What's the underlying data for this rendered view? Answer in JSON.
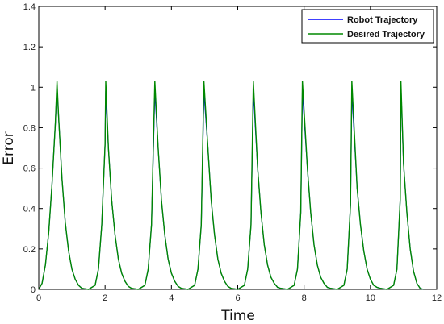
{
  "chart_data": {
    "type": "line",
    "title": "",
    "xlabel": "Time",
    "ylabel": "Error",
    "xlim": [
      0,
      12
    ],
    "ylim": [
      0,
      1.4
    ],
    "xticks": [
      0,
      2,
      4,
      6,
      8,
      10,
      12
    ],
    "xtick_labels": [
      "0",
      "2",
      "4",
      "6",
      "8",
      "10",
      "12"
    ],
    "yticks": [
      0,
      0.2,
      0.4,
      0.6,
      0.8,
      1.0,
      1.2,
      1.4
    ],
    "ytick_labels": [
      "0",
      "0.2",
      "0.4",
      "0.6",
      "0.8",
      "1",
      "1.2",
      "1.4"
    ],
    "grid": false,
    "legend_position": "top-right",
    "peak_times": [
      0.55,
      2.02,
      3.5,
      4.98,
      6.47,
      7.95,
      9.44,
      10.92
    ],
    "peak_value": 1.03,
    "x_end": 11.6,
    "series": [
      {
        "name": "Robot Trajectory",
        "color": "#0000ff",
        "x": [
          0,
          0.1,
          0.2,
          0.3,
          0.4,
          0.5,
          0.55,
          0.6,
          0.7,
          0.8,
          0.9,
          1.0,
          1.1,
          1.2,
          1.3,
          1.5,
          1.7,
          1.8,
          1.9,
          2.0,
          2.02,
          2.1,
          2.2,
          2.3,
          2.4,
          2.5,
          2.6,
          2.7,
          2.8,
          3.0,
          3.2,
          3.3,
          3.4,
          3.5,
          3.6,
          3.7,
          3.8,
          3.9,
          4.0,
          4.1,
          4.2,
          4.3,
          4.5,
          4.7,
          4.8,
          4.9,
          4.98,
          5.1,
          5.2,
          5.3,
          5.4,
          5.5,
          5.6,
          5.7,
          5.8,
          6.0,
          6.2,
          6.3,
          6.4,
          6.47,
          6.6,
          6.7,
          6.8,
          6.9,
          7.0,
          7.1,
          7.2,
          7.3,
          7.5,
          7.7,
          7.8,
          7.9,
          7.95,
          8.1,
          8.2,
          8.3,
          8.4,
          8.5,
          8.6,
          8.7,
          8.8,
          9.0,
          9.2,
          9.3,
          9.4,
          9.44,
          9.6,
          9.7,
          9.8,
          9.9,
          10.0,
          10.1,
          10.2,
          10.3,
          10.5,
          10.7,
          10.8,
          10.9,
          10.92,
          11.0,
          11.1,
          11.2,
          11.3,
          11.4,
          11.5,
          11.6
        ],
        "values": [
          0.0,
          0.03,
          0.12,
          0.28,
          0.52,
          0.82,
          1.0,
          0.85,
          0.55,
          0.33,
          0.19,
          0.1,
          0.05,
          0.02,
          0.005,
          0.0,
          0.02,
          0.1,
          0.32,
          0.72,
          0.98,
          0.7,
          0.44,
          0.27,
          0.15,
          0.08,
          0.04,
          0.015,
          0.005,
          0.0,
          0.02,
          0.1,
          0.32,
          0.98,
          0.7,
          0.44,
          0.27,
          0.15,
          0.08,
          0.04,
          0.015,
          0.005,
          0.0,
          0.02,
          0.1,
          0.32,
          0.98,
          0.7,
          0.44,
          0.27,
          0.15,
          0.08,
          0.04,
          0.015,
          0.005,
          0.0,
          0.02,
          0.1,
          0.32,
          0.98,
          0.6,
          0.38,
          0.22,
          0.12,
          0.06,
          0.03,
          0.01,
          0.005,
          0.0,
          0.02,
          0.1,
          0.38,
          0.98,
          0.6,
          0.38,
          0.22,
          0.12,
          0.06,
          0.03,
          0.01,
          0.005,
          0.0,
          0.02,
          0.1,
          0.42,
          0.98,
          0.5,
          0.32,
          0.19,
          0.1,
          0.05,
          0.02,
          0.01,
          0.005,
          0.0,
          0.02,
          0.1,
          0.45,
          1.0,
          0.62,
          0.38,
          0.2,
          0.09,
          0.03,
          0.005,
          0.0
        ]
      },
      {
        "name": "Desired Trajectory",
        "color": "#008800",
        "x": [
          0,
          0.1,
          0.2,
          0.3,
          0.4,
          0.5,
          0.55,
          0.6,
          0.7,
          0.8,
          0.9,
          1.0,
          1.1,
          1.2,
          1.3,
          1.5,
          1.7,
          1.8,
          1.9,
          2.0,
          2.02,
          2.1,
          2.2,
          2.3,
          2.4,
          2.5,
          2.6,
          2.7,
          2.8,
          3.0,
          3.2,
          3.3,
          3.4,
          3.5,
          3.6,
          3.7,
          3.8,
          3.9,
          4.0,
          4.1,
          4.2,
          4.3,
          4.5,
          4.7,
          4.8,
          4.9,
          4.98,
          5.1,
          5.2,
          5.3,
          5.4,
          5.5,
          5.6,
          5.7,
          5.8,
          6.0,
          6.2,
          6.3,
          6.4,
          6.47,
          6.6,
          6.7,
          6.8,
          6.9,
          7.0,
          7.1,
          7.2,
          7.3,
          7.5,
          7.7,
          7.8,
          7.9,
          7.95,
          8.1,
          8.2,
          8.3,
          8.4,
          8.5,
          8.6,
          8.7,
          8.8,
          9.0,
          9.2,
          9.3,
          9.4,
          9.44,
          9.6,
          9.7,
          9.8,
          9.9,
          10.0,
          10.1,
          10.2,
          10.3,
          10.5,
          10.7,
          10.8,
          10.9,
          10.92,
          11.0,
          11.1,
          11.2,
          11.3,
          11.4,
          11.5,
          11.6
        ],
        "values": [
          0.0,
          0.03,
          0.12,
          0.28,
          0.52,
          0.82,
          1.03,
          0.85,
          0.55,
          0.33,
          0.19,
          0.1,
          0.05,
          0.02,
          0.005,
          0.0,
          0.02,
          0.1,
          0.32,
          0.72,
          1.03,
          0.7,
          0.44,
          0.27,
          0.15,
          0.08,
          0.04,
          0.015,
          0.005,
          0.0,
          0.02,
          0.1,
          0.32,
          1.03,
          0.7,
          0.44,
          0.27,
          0.15,
          0.08,
          0.04,
          0.015,
          0.005,
          0.0,
          0.02,
          0.1,
          0.32,
          1.03,
          0.7,
          0.44,
          0.27,
          0.15,
          0.08,
          0.04,
          0.015,
          0.005,
          0.0,
          0.02,
          0.1,
          0.32,
          1.03,
          0.6,
          0.38,
          0.22,
          0.12,
          0.06,
          0.03,
          0.01,
          0.005,
          0.0,
          0.02,
          0.1,
          0.38,
          1.03,
          0.6,
          0.38,
          0.22,
          0.12,
          0.06,
          0.03,
          0.01,
          0.005,
          0.0,
          0.02,
          0.1,
          0.42,
          1.03,
          0.5,
          0.32,
          0.19,
          0.1,
          0.05,
          0.02,
          0.01,
          0.005,
          0.0,
          0.02,
          0.1,
          0.45,
          1.03,
          0.62,
          0.38,
          0.2,
          0.09,
          0.03,
          0.005,
          0.0
        ]
      }
    ]
  }
}
